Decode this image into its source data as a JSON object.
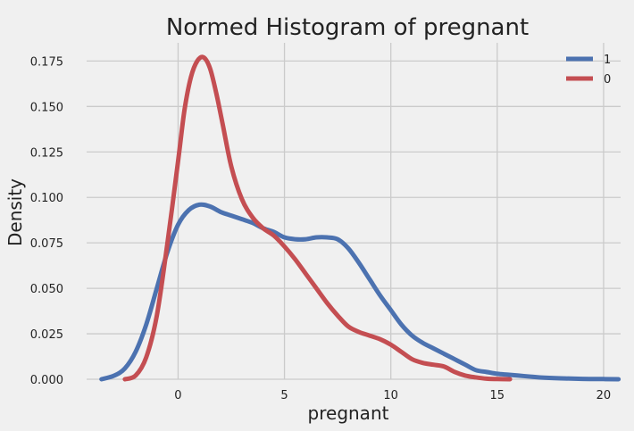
{
  "chart_data": {
    "type": "line",
    "title": "Normed Histogram of pregnant",
    "xlabel": "pregnant",
    "ylabel": "Density",
    "xlim": [
      -4.3,
      20.8
    ],
    "ylim": [
      0.0,
      0.185
    ],
    "xticks": [
      0,
      5,
      10,
      15,
      20
    ],
    "xtick_labels": [
      "0",
      "5",
      "10",
      "15",
      "20"
    ],
    "yticks": [
      0.0,
      0.025,
      0.05,
      0.075,
      0.1,
      0.125,
      0.15,
      0.175
    ],
    "ytick_labels": [
      "0.000",
      "0.025",
      "0.050",
      "0.075",
      "0.100",
      "0.125",
      "0.150",
      "0.175"
    ],
    "grid": true,
    "legend_position": "top-right",
    "series": [
      {
        "name": "1",
        "color": "#4c72b0",
        "x": [
          -3.6,
          -3.0,
          -2.5,
          -2.0,
          -1.5,
          -1.0,
          -0.5,
          0.0,
          0.5,
          1.0,
          1.5,
          2.0,
          2.5,
          3.0,
          3.5,
          4.0,
          4.5,
          5.0,
          5.5,
          6.0,
          6.5,
          7.0,
          7.5,
          8.0,
          8.5,
          9.0,
          9.5,
          10.0,
          10.5,
          11.0,
          11.5,
          12.0,
          12.5,
          13.0,
          13.5,
          14.0,
          14.5,
          15.0,
          15.5,
          16.0,
          16.5,
          17.0,
          18.0,
          19.0,
          20.0,
          20.7
        ],
        "y": [
          0.0,
          0.002,
          0.006,
          0.015,
          0.03,
          0.05,
          0.07,
          0.085,
          0.093,
          0.096,
          0.095,
          0.092,
          0.09,
          0.088,
          0.086,
          0.083,
          0.081,
          0.078,
          0.077,
          0.077,
          0.078,
          0.078,
          0.077,
          0.072,
          0.064,
          0.055,
          0.046,
          0.038,
          0.03,
          0.024,
          0.02,
          0.017,
          0.014,
          0.011,
          0.008,
          0.005,
          0.004,
          0.003,
          0.0025,
          0.002,
          0.0015,
          0.001,
          0.0005,
          0.0002,
          0.0001,
          0.0
        ]
      },
      {
        "name": "0",
        "color": "#c44e52",
        "x": [
          -2.5,
          -2.0,
          -1.5,
          -1.0,
          -0.5,
          0.0,
          0.3,
          0.6,
          0.9,
          1.2,
          1.5,
          1.8,
          2.1,
          2.5,
          3.0,
          3.5,
          4.0,
          4.5,
          5.0,
          5.5,
          6.0,
          6.5,
          7.0,
          7.5,
          8.0,
          8.5,
          9.0,
          9.5,
          10.0,
          10.5,
          11.0,
          11.5,
          12.0,
          12.5,
          13.0,
          13.5,
          14.0,
          14.5,
          15.0,
          15.6
        ],
        "y": [
          0.0,
          0.002,
          0.012,
          0.035,
          0.075,
          0.12,
          0.148,
          0.166,
          0.175,
          0.177,
          0.171,
          0.157,
          0.14,
          0.117,
          0.099,
          0.089,
          0.083,
          0.079,
          0.073,
          0.066,
          0.058,
          0.05,
          0.042,
          0.035,
          0.029,
          0.026,
          0.024,
          0.022,
          0.019,
          0.015,
          0.011,
          0.009,
          0.008,
          0.007,
          0.004,
          0.002,
          0.001,
          0.0003,
          0.0001,
          0.0
        ]
      }
    ]
  }
}
